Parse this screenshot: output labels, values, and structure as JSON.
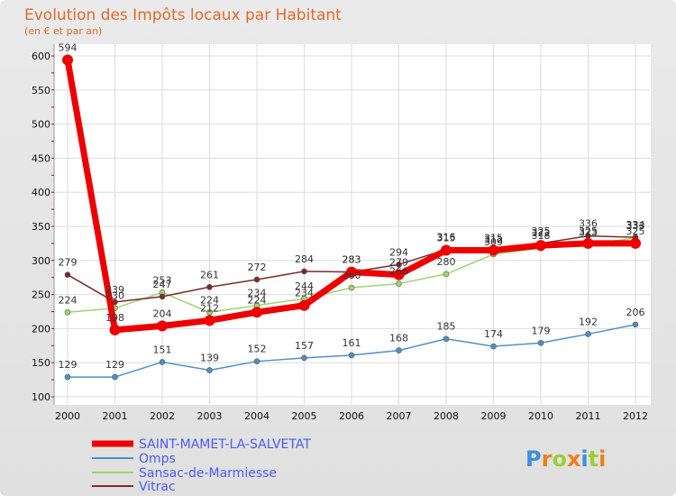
{
  "chart_data": {
    "type": "line",
    "title": "Evolution des Impôts locaux par Habitant",
    "subtitle": "(en € et par an)",
    "x": [
      "2000",
      "2001",
      "2002",
      "2003",
      "2004",
      "2005",
      "2006",
      "2007",
      "2008",
      "2009",
      "2010",
      "2011",
      "2012"
    ],
    "ylim": [
      100,
      600
    ],
    "yticks": [
      "100",
      "150",
      "200",
      "250",
      "300",
      "350",
      "400",
      "450",
      "500",
      "550",
      "600"
    ],
    "grid": true,
    "legend_position": "bottom-left",
    "series": [
      {
        "name": "SAINT-MAMET-LA-SALVETAT",
        "color": "#ee0000",
        "values": [
          594,
          198,
          204,
          212,
          224,
          234,
          283,
          279,
          315,
          315,
          322,
          325,
          325
        ],
        "labels": [
          "594",
          "198",
          "204",
          "212",
          "224",
          "234",
          "283",
          "279",
          "315",
          "315",
          "322",
          "325",
          "325"
        ]
      },
      {
        "name": "Omps",
        "color": "#4f90c8",
        "values": [
          129,
          129,
          151,
          139,
          152,
          157,
          161,
          168,
          185,
          174,
          179,
          192,
          206
        ],
        "labels": [
          "129",
          "129",
          "151",
          "139",
          "152",
          "157",
          "161",
          "168",
          "185",
          "174",
          "179",
          "192",
          "206"
        ]
      },
      {
        "name": "Sansac-de-Marmiesse",
        "color": "#9ed66c",
        "values": [
          224,
          230,
          253,
          224,
          234,
          244,
          260,
          266,
          280,
          309,
          318,
          323,
          333
        ],
        "labels": [
          "224",
          "230",
          "253",
          "224",
          "234",
          "244",
          "260",
          "266",
          "280",
          "309",
          "318",
          "323",
          "333"
        ]
      },
      {
        "name": "Vitrac",
        "color": "#7a2a2a",
        "values": [
          279,
          239,
          247,
          261,
          272,
          284,
          283,
          294,
          316,
          312,
          325,
          336,
          334
        ],
        "labels": [
          "279",
          "239",
          "247",
          "261",
          "272",
          "284",
          "283",
          "294",
          "316",
          "312",
          "325",
          "336",
          "334"
        ]
      }
    ]
  },
  "logo": {
    "letters": [
      "P",
      "r",
      "o",
      "x",
      "i",
      "t",
      "i"
    ],
    "colors": [
      "#3a8fe0",
      "#f07f1a",
      "#9ad030",
      "#f07f1a",
      "#3a8fe0",
      "#9ad030",
      "#f07f1a"
    ]
  }
}
